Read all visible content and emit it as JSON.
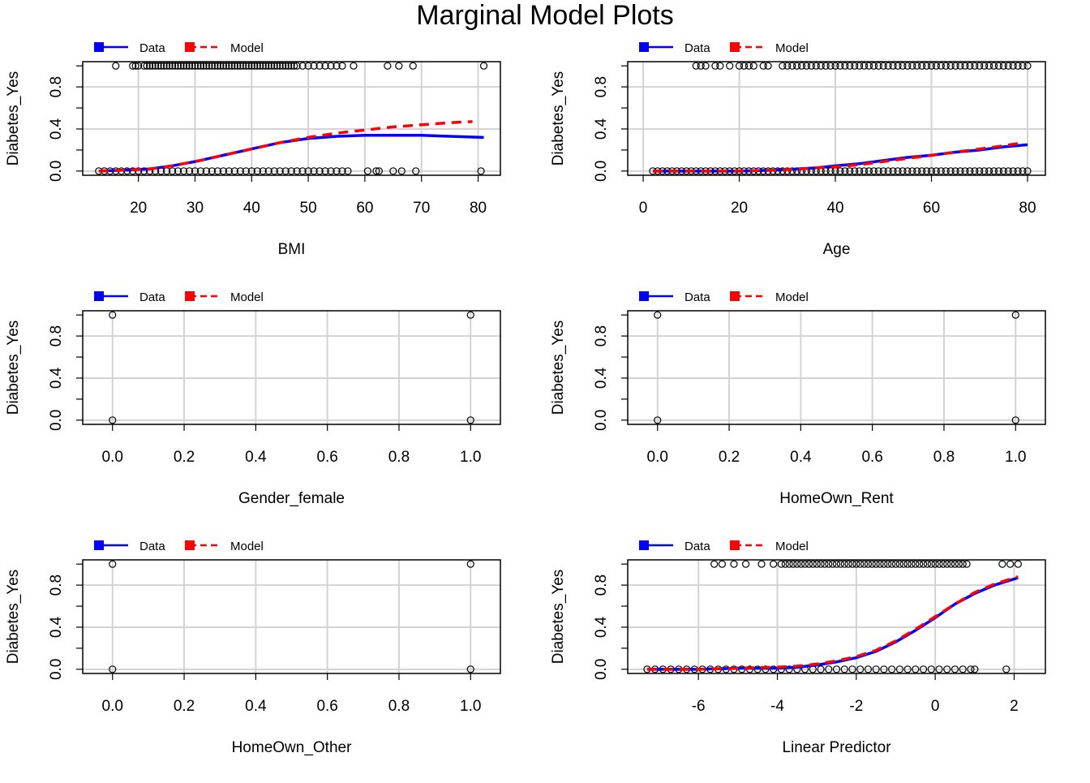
{
  "page": {
    "title": "Marginal Model Plots"
  },
  "legend": {
    "entries": [
      {
        "label": "Data",
        "color": "#0000FF",
        "style": "solid"
      },
      {
        "label": "Model",
        "color": "#FF0000",
        "style": "dashed"
      }
    ]
  },
  "colors": {
    "data_line": "#0000FF",
    "model_line": "#FF0000",
    "grid": "#D3D3D3",
    "points": "#000000"
  },
  "chart_data": [
    {
      "type": "scatter",
      "title": "",
      "xlabel": "BMI",
      "ylabel": "Diabetes_Yes",
      "xlim": [
        12.9,
        81.2
      ],
      "ylim": [
        0,
        1
      ],
      "xticks": [
        "20",
        "30",
        "40",
        "50",
        "60",
        "70",
        "80"
      ],
      "xtick_values": [
        20,
        30,
        40,
        50,
        60,
        70,
        80
      ],
      "yticks": [
        "0.0",
        "0.4",
        "0.8"
      ],
      "ytick_values": [
        0,
        0.4,
        0.8
      ],
      "grid": true,
      "legend_position": "top-left",
      "points_y1_x": [
        16,
        19,
        19.5,
        20,
        21,
        21.5,
        22,
        22.5,
        23,
        23.5,
        24,
        24.5,
        25,
        25.5,
        26,
        26.5,
        27,
        27.5,
        28,
        28.5,
        29,
        29.5,
        30,
        30.5,
        31,
        31.5,
        32,
        32.5,
        33,
        33.5,
        34,
        34.5,
        35,
        35.5,
        36,
        36.5,
        37,
        37.5,
        38,
        38.5,
        39,
        39.5,
        40,
        40.5,
        41,
        41.5,
        42,
        42.5,
        43,
        43.5,
        44,
        44.5,
        45,
        45.5,
        46,
        46.5,
        47,
        47.5,
        48,
        49,
        50,
        51,
        52,
        53,
        54,
        55,
        56,
        58,
        64,
        66,
        68.5,
        81
      ],
      "points_y0_x": [
        13,
        14,
        15,
        16,
        17,
        18,
        19,
        20,
        21,
        22,
        23,
        24,
        25,
        26,
        27,
        28,
        29,
        30,
        31,
        32,
        33,
        34,
        35,
        36,
        37,
        38,
        39,
        40,
        41,
        42,
        43,
        44,
        45,
        46,
        47,
        48,
        49,
        50,
        51,
        52,
        53,
        54,
        55,
        56,
        57,
        60.5,
        62,
        62.5,
        65,
        66.5,
        69,
        80.5
      ],
      "series": [
        {
          "name": "Data",
          "x": [
            13,
            18,
            22,
            26,
            30,
            35,
            40,
            45,
            50,
            55,
            60,
            65,
            70,
            75,
            81
          ],
          "y": [
            0.0,
            0.01,
            0.02,
            0.05,
            0.09,
            0.15,
            0.21,
            0.27,
            0.31,
            0.33,
            0.34,
            0.34,
            0.34,
            0.33,
            0.32
          ]
        },
        {
          "name": "Model",
          "x": [
            13,
            18,
            22,
            26,
            30,
            35,
            40,
            45,
            50,
            55,
            60,
            65,
            70,
            75,
            79
          ],
          "y": [
            0.0,
            0.01,
            0.02,
            0.05,
            0.09,
            0.15,
            0.21,
            0.27,
            0.32,
            0.36,
            0.39,
            0.42,
            0.44,
            0.46,
            0.47
          ]
        }
      ]
    },
    {
      "type": "scatter",
      "title": "",
      "xlabel": "Age",
      "ylabel": "Diabetes_Yes",
      "xlim": [
        0,
        80.5
      ],
      "ylim": [
        0,
        1
      ],
      "xticks": [
        "0",
        "20",
        "40",
        "60",
        "80"
      ],
      "xtick_values": [
        0,
        20,
        40,
        60,
        80
      ],
      "yticks": [
        "0.0",
        "0.4",
        "0.8"
      ],
      "ytick_values": [
        0,
        0.4,
        0.8
      ],
      "grid": true,
      "legend_position": "top-left",
      "points_y1_x": [
        11,
        12,
        13,
        15,
        16,
        18,
        20,
        21,
        22,
        23,
        25,
        26,
        29,
        30,
        31,
        32,
        33,
        34,
        35,
        36,
        37,
        38,
        39,
        40,
        41,
        42,
        43,
        44,
        45,
        46,
        47,
        48,
        49,
        50,
        51,
        52,
        53,
        54,
        55,
        56,
        57,
        58,
        59,
        60,
        61,
        62,
        63,
        64,
        65,
        66,
        67,
        68,
        69,
        70,
        71,
        72,
        73,
        74,
        75,
        76,
        77,
        78,
        79,
        80
      ],
      "points_y0_x": [
        2,
        3,
        4,
        5,
        6,
        7,
        8,
        9,
        10,
        11,
        12,
        13,
        14,
        15,
        16,
        17,
        18,
        19,
        20,
        21,
        22,
        23,
        24,
        25,
        26,
        27,
        28,
        29,
        30,
        31,
        32,
        33,
        34,
        35,
        36,
        37,
        38,
        39,
        40,
        41,
        42,
        43,
        44,
        45,
        46,
        47,
        48,
        49,
        50,
        51,
        52,
        53,
        54,
        55,
        56,
        57,
        58,
        59,
        60,
        61,
        62,
        63,
        64,
        65,
        66,
        67,
        68,
        69,
        70,
        71,
        72,
        73,
        74,
        75,
        76,
        77,
        78,
        79,
        80
      ],
      "series": [
        {
          "name": "Data",
          "x": [
            2,
            10,
            20,
            28,
            32,
            36,
            40,
            45,
            50,
            55,
            60,
            65,
            70,
            75,
            80
          ],
          "y": [
            0.0,
            0.0,
            0.0,
            0.01,
            0.02,
            0.03,
            0.05,
            0.07,
            0.1,
            0.13,
            0.15,
            0.18,
            0.2,
            0.23,
            0.25
          ]
        },
        {
          "name": "Model",
          "x": [
            2,
            10,
            20,
            28,
            32,
            36,
            40,
            45,
            50,
            55,
            60,
            65,
            70,
            75,
            79
          ],
          "y": [
            0.0,
            0.0,
            0.0,
            0.01,
            0.02,
            0.03,
            0.04,
            0.06,
            0.09,
            0.12,
            0.15,
            0.18,
            0.21,
            0.24,
            0.27
          ]
        }
      ]
    },
    {
      "type": "scatter",
      "title": "",
      "xlabel": "Gender_female",
      "ylabel": "Diabetes_Yes",
      "xlim": [
        -0.04,
        1.04
      ],
      "ylim": [
        0,
        1
      ],
      "xticks": [
        "0.0",
        "0.2",
        "0.4",
        "0.6",
        "0.8",
        "1.0"
      ],
      "xtick_values": [
        0,
        0.2,
        0.4,
        0.6,
        0.8,
        1.0
      ],
      "yticks": [
        "0.0",
        "0.4",
        "0.8"
      ],
      "ytick_values": [
        0,
        0.4,
        0.8
      ],
      "grid": true,
      "legend_position": "top-left",
      "points_y1_x": [
        0,
        1
      ],
      "points_y0_x": [
        0,
        1
      ],
      "series": []
    },
    {
      "type": "scatter",
      "title": "",
      "xlabel": "HomeOwn_Rent",
      "ylabel": "Diabetes_Yes",
      "xlim": [
        -0.04,
        1.04
      ],
      "ylim": [
        0,
        1
      ],
      "xticks": [
        "0.0",
        "0.2",
        "0.4",
        "0.6",
        "0.8",
        "1.0"
      ],
      "xtick_values": [
        0,
        0.2,
        0.4,
        0.6,
        0.8,
        1.0
      ],
      "yticks": [
        "0.0",
        "0.4",
        "0.8"
      ],
      "ytick_values": [
        0,
        0.4,
        0.8
      ],
      "grid": true,
      "legend_position": "top-left",
      "points_y1_x": [
        0,
        1
      ],
      "points_y0_x": [
        0,
        1
      ],
      "series": []
    },
    {
      "type": "scatter",
      "title": "",
      "xlabel": "HomeOwn_Other",
      "ylabel": "Diabetes_Yes",
      "xlim": [
        -0.04,
        1.04
      ],
      "ylim": [
        0,
        1
      ],
      "xticks": [
        "0.0",
        "0.2",
        "0.4",
        "0.6",
        "0.8",
        "1.0"
      ],
      "xtick_values": [
        0,
        0.2,
        0.4,
        0.6,
        0.8,
        1.0
      ],
      "yticks": [
        "0.0",
        "0.4",
        "0.8"
      ],
      "ytick_values": [
        0,
        0.4,
        0.8
      ],
      "grid": true,
      "legend_position": "top-left",
      "points_y1_x": [
        0,
        1
      ],
      "points_y0_x": [
        0,
        1
      ],
      "series": []
    },
    {
      "type": "scatter",
      "title": "",
      "xlabel": "Linear Predictor",
      "ylabel": "Diabetes_Yes",
      "xlim": [
        -7.4,
        2.4
      ],
      "ylim": [
        0,
        1
      ],
      "xticks": [
        "-6",
        "-4",
        "-2",
        "0",
        "2"
      ],
      "xtick_values": [
        -6,
        -4,
        -2,
        0,
        2
      ],
      "yticks": [
        "0.0",
        "0.4",
        "0.8"
      ],
      "ytick_values": [
        0,
        0.4,
        0.8
      ],
      "grid": true,
      "legend_position": "top-left",
      "points_y1_x": [
        -5.6,
        -5.4,
        -5.1,
        -4.8,
        -4.4,
        -4.1,
        -3.9,
        -3.8,
        -3.7,
        -3.6,
        -3.5,
        -3.4,
        -3.3,
        -3.2,
        -3.1,
        -3.0,
        -2.9,
        -2.8,
        -2.7,
        -2.6,
        -2.5,
        -2.4,
        -2.3,
        -2.2,
        -2.1,
        -2.0,
        -1.9,
        -1.8,
        -1.7,
        -1.6,
        -1.5,
        -1.4,
        -1.3,
        -1.2,
        -1.1,
        -1.0,
        -0.9,
        -0.8,
        -0.7,
        -0.6,
        -0.5,
        -0.4,
        -0.3,
        -0.2,
        -0.1,
        0.0,
        0.1,
        0.2,
        0.3,
        0.4,
        0.5,
        0.6,
        0.7,
        0.8,
        1.7,
        1.9,
        2.1
      ],
      "points_y0_x": [
        -7.3,
        -7.1,
        -6.9,
        -6.7,
        -6.5,
        -6.3,
        -6.1,
        -5.9,
        -5.7,
        -5.5,
        -5.3,
        -5.1,
        -4.9,
        -4.7,
        -4.5,
        -4.3,
        -4.1,
        -3.9,
        -3.7,
        -3.5,
        -3.3,
        -3.1,
        -2.9,
        -2.7,
        -2.5,
        -2.3,
        -2.1,
        -1.9,
        -1.7,
        -1.5,
        -1.3,
        -1.1,
        -0.9,
        -0.7,
        -0.5,
        -0.3,
        -0.1,
        0.1,
        0.3,
        0.5,
        0.7,
        0.9,
        1.0,
        1.8
      ],
      "series": [
        {
          "name": "Data",
          "x": [
            -7.3,
            -6,
            -5,
            -4,
            -3.5,
            -3,
            -2.5,
            -2,
            -1.5,
            -1,
            -0.5,
            0,
            0.5,
            1,
            1.5,
            2.1
          ],
          "y": [
            0.0,
            0.0,
            0.01,
            0.01,
            0.02,
            0.04,
            0.07,
            0.11,
            0.17,
            0.26,
            0.37,
            0.49,
            0.62,
            0.72,
            0.8,
            0.87
          ]
        },
        {
          "name": "Model",
          "x": [
            -7.3,
            -6,
            -5,
            -4,
            -3.5,
            -3,
            -2.5,
            -2,
            -1.5,
            -1,
            -0.5,
            0,
            0.5,
            1,
            1.5,
            2.1
          ],
          "y": [
            0.0,
            0.0,
            0.01,
            0.02,
            0.03,
            0.05,
            0.08,
            0.12,
            0.18,
            0.27,
            0.38,
            0.5,
            0.62,
            0.73,
            0.81,
            0.88
          ]
        }
      ]
    }
  ]
}
